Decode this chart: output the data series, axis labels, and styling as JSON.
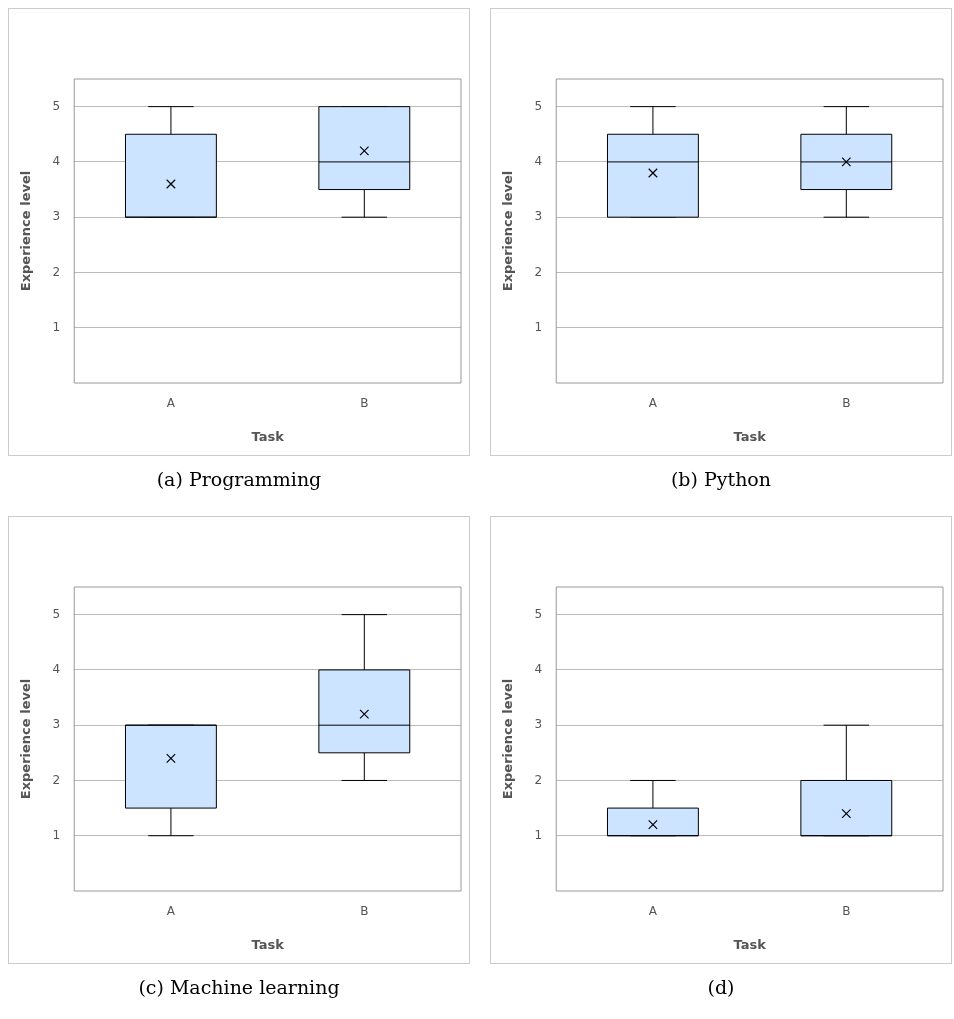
{
  "chart_data": [
    {
      "type": "box",
      "title": "(a) Programming",
      "xlabel": "Task",
      "ylabel": "Experience level",
      "categories": [
        "A",
        "B"
      ],
      "color": "#cce4ff",
      "ylim": [
        0,
        5.5
      ],
      "yticks": [
        1,
        2,
        3,
        4,
        5
      ],
      "grid": "y",
      "marker": "cross",
      "boxes": [
        {
          "low": 3,
          "q1": 3,
          "median": 3,
          "q3": 4.5,
          "high": 5,
          "mean": 3.6
        },
        {
          "low": 3,
          "q1": 3.5,
          "median": 4,
          "q3": 5,
          "high": 5,
          "mean": 4.2
        }
      ]
    },
    {
      "type": "box",
      "title": "(b) Python",
      "xlabel": "Task",
      "ylabel": "Experience level",
      "categories": [
        "A",
        "B"
      ],
      "color": "#cce4ff",
      "ylim": [
        0,
        5.5
      ],
      "yticks": [
        1,
        2,
        3,
        4,
        5
      ],
      "grid": "y",
      "marker": "cross",
      "boxes": [
        {
          "low": 3,
          "q1": 3,
          "median": 4,
          "q3": 4.5,
          "high": 5,
          "mean": 3.8
        },
        {
          "low": 3,
          "q1": 3.5,
          "median": 4,
          "q3": 4.5,
          "high": 5,
          "mean": 4
        }
      ]
    },
    {
      "type": "box",
      "title": "(c) Machine learning",
      "xlabel": "Task",
      "ylabel": "Experience level",
      "categories": [
        "A",
        "B"
      ],
      "color": "#cce4ff",
      "ylim": [
        0,
        5.5
      ],
      "yticks": [
        1,
        2,
        3,
        4,
        5
      ],
      "grid": "y",
      "marker": "cross",
      "boxes": [
        {
          "low": 1,
          "q1": 1.5,
          "median": 3,
          "q3": 3,
          "high": 3,
          "mean": 2.4
        },
        {
          "low": 2,
          "q1": 2.5,
          "median": 3,
          "q3": 4,
          "high": 5,
          "mean": 3.2
        }
      ]
    },
    {
      "type": "box",
      "title": "(d)",
      "xlabel": "Task",
      "ylabel": "Experience level",
      "categories": [
        "A",
        "B"
      ],
      "color": "#cce4ff",
      "ylim": [
        0,
        5.5
      ],
      "yticks": [
        1,
        2,
        3,
        4,
        5
      ],
      "grid": "y",
      "marker": "cross",
      "boxes": [
        {
          "low": 1,
          "q1": 1,
          "median": 1,
          "q3": 1.5,
          "high": 2,
          "mean": 1.2
        },
        {
          "low": 1,
          "q1": 1,
          "median": 1,
          "q3": 2,
          "high": 3,
          "mean": 1.4
        }
      ]
    }
  ]
}
